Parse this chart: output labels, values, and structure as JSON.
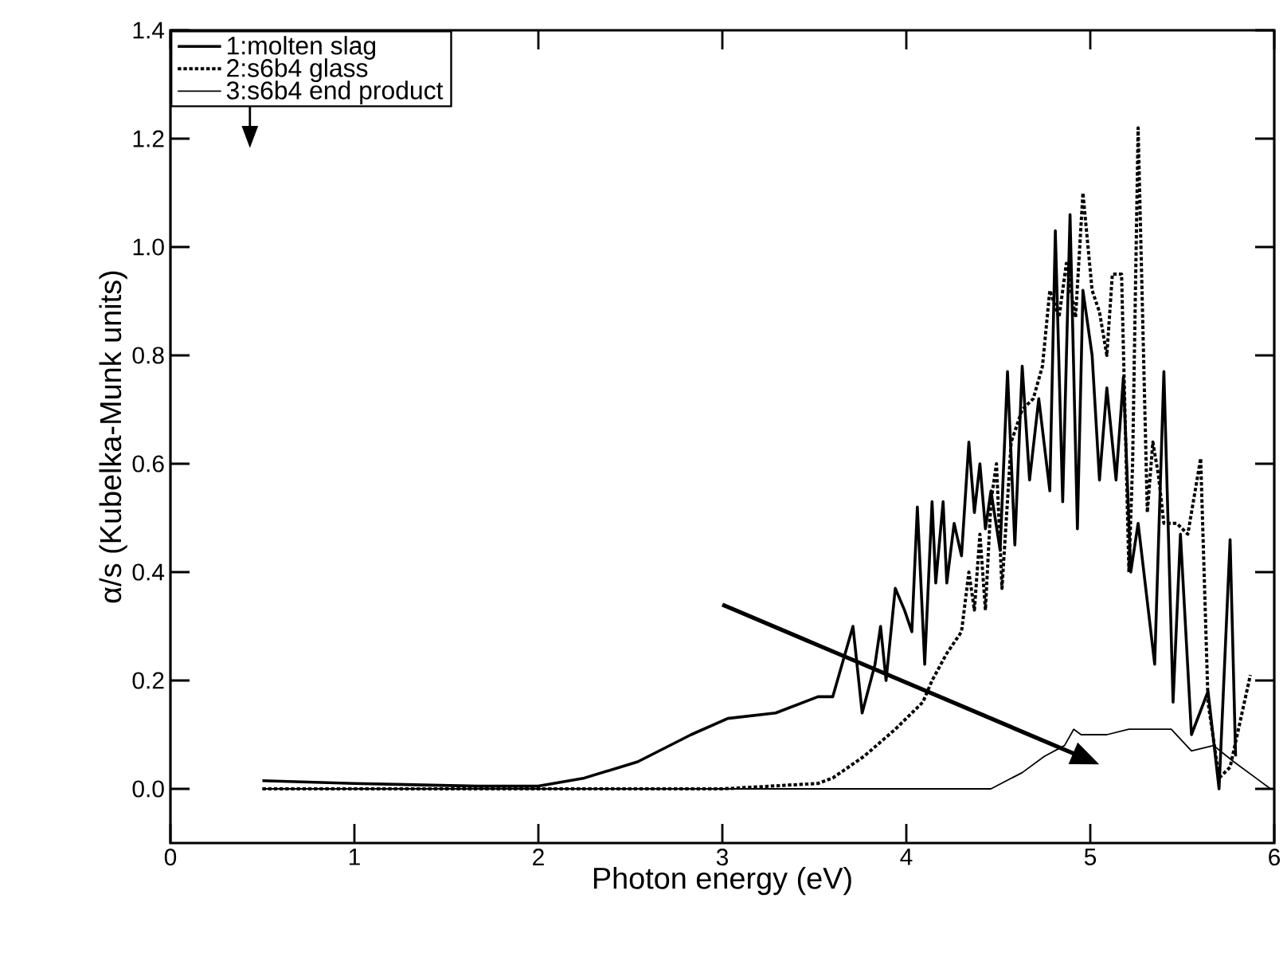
{
  "chart_data": {
    "type": "line",
    "xlabel": "Photon energy (eV)",
    "ylabel": "α/s (Kubelka-Munk units)",
    "xlim": [
      0,
      6
    ],
    "ylim": [
      -0.1,
      1.4
    ],
    "xticks": [
      0,
      1,
      2,
      3,
      4,
      5,
      6
    ],
    "yticks": [
      {
        "value": 0,
        "label": "0.0"
      },
      0.2,
      0.4,
      0.6,
      0.8,
      {
        "value": 1,
        "label": "1.0"
      },
      1.2,
      1.4
    ],
    "grid": false,
    "legend": "top left",
    "marker": "none",
    "series": [
      {
        "name": "1:molten slag",
        "color": "#000000",
        "line_style": "solid",
        "x": [
          0.5,
          1.0,
          1.67,
          2.0,
          2.25,
          2.54,
          2.83,
          3.03,
          3.29,
          3.52,
          3.6,
          3.71,
          3.76,
          3.83,
          3.86,
          3.89,
          3.94,
          3.99,
          4.03,
          4.06,
          4.1,
          4.14,
          4.16,
          4.2,
          4.22,
          4.26,
          4.3,
          4.34,
          4.37,
          4.4,
          4.43,
          4.46,
          4.51,
          4.55,
          4.59,
          4.63,
          4.67,
          4.72,
          4.78,
          4.81,
          4.85,
          4.89,
          4.93,
          4.96,
          5.01,
          5.05,
          5.09,
          5.14,
          5.18,
          5.22,
          5.26,
          5.35,
          5.4,
          5.45,
          5.49,
          5.55,
          5.64,
          5.7,
          5.76,
          5.79
        ],
        "values": [
          0.015,
          0.01,
          0.005,
          0.005,
          0.02,
          0.05,
          0.1,
          0.13,
          0.14,
          0.17,
          0.17,
          0.3,
          0.14,
          0.23,
          0.3,
          0.2,
          0.37,
          0.33,
          0.29,
          0.52,
          0.23,
          0.53,
          0.38,
          0.53,
          0.38,
          0.49,
          0.43,
          0.64,
          0.51,
          0.6,
          0.48,
          0.55,
          0.44,
          0.77,
          0.45,
          0.78,
          0.57,
          0.72,
          0.55,
          1.03,
          0.53,
          1.06,
          0.48,
          0.92,
          0.8,
          0.57,
          0.74,
          0.57,
          0.76,
          0.4,
          0.49,
          0.23,
          0.77,
          0.16,
          0.47,
          0.1,
          0.18,
          0.0,
          0.46,
          0.06
        ]
      },
      {
        "name": "2:s6b4 glass",
        "color": "#000000",
        "line_style": "dotted",
        "x": [
          0.5,
          2.0,
          3.0,
          3.52,
          3.6,
          3.77,
          3.94,
          4.09,
          4.14,
          4.22,
          4.3,
          4.34,
          4.37,
          4.4,
          4.43,
          4.46,
          4.49,
          4.52,
          4.57,
          4.63,
          4.69,
          4.74,
          4.78,
          4.83,
          4.87,
          4.92,
          4.96,
          5.01,
          5.05,
          5.09,
          5.12,
          5.17,
          5.21,
          5.23,
          5.26,
          5.31,
          5.34,
          5.37,
          5.4,
          5.47,
          5.53,
          5.6,
          5.64,
          5.7,
          5.76,
          5.87
        ],
        "values": [
          0.0,
          0.0,
          0.0,
          0.01,
          0.02,
          0.06,
          0.11,
          0.16,
          0.2,
          0.25,
          0.29,
          0.4,
          0.33,
          0.47,
          0.33,
          0.53,
          0.6,
          0.37,
          0.64,
          0.7,
          0.72,
          0.78,
          0.92,
          0.87,
          0.97,
          0.87,
          1.1,
          0.92,
          0.88,
          0.8,
          0.95,
          0.95,
          0.4,
          0.6,
          1.22,
          0.51,
          0.64,
          0.58,
          0.49,
          0.49,
          0.47,
          0.61,
          0.16,
          0.02,
          0.04,
          0.21
        ]
      },
      {
        "name": "3:s6b4 end product",
        "color": "#000000",
        "line_style": "solid",
        "x": [
          0.5,
          1.5,
          2.5,
          3.5,
          4.46,
          4.63,
          4.75,
          4.86,
          4.91,
          4.95,
          5.09,
          5.21,
          5.32,
          5.44,
          5.55,
          5.67,
          5.78,
          5.9,
          5.98
        ],
        "values": [
          0.0,
          0.0,
          0.0,
          0.0,
          0.0,
          0.03,
          0.06,
          0.08,
          0.11,
          0.1,
          0.1,
          0.11,
          0.11,
          0.11,
          0.07,
          0.08,
          0.05,
          0.02,
          0.0
        ]
      }
    ]
  }
}
